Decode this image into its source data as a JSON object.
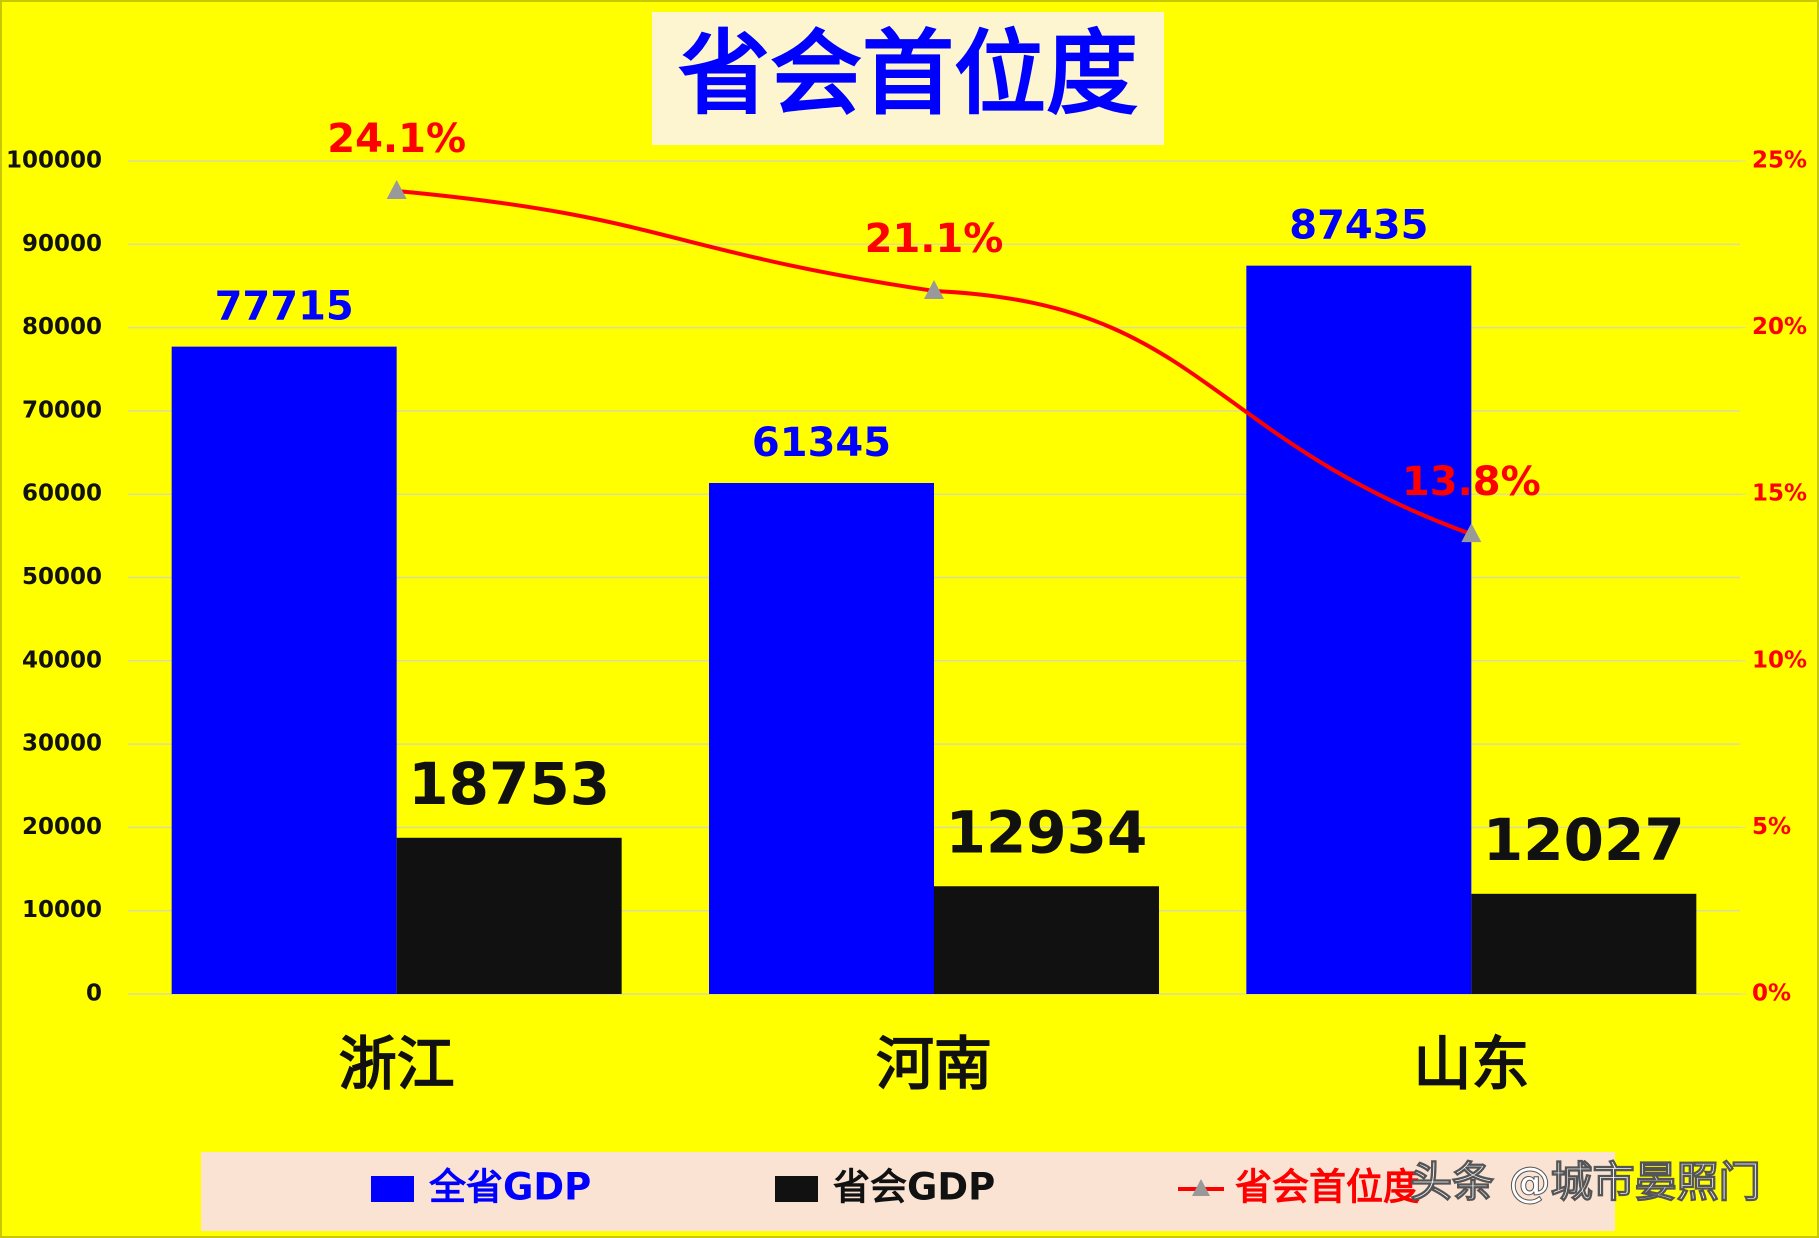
{
  "chart_data": {
    "type": "bar",
    "title": "省会首位度",
    "categories": [
      "浙江",
      "河南",
      "山东"
    ],
    "series": [
      {
        "name": "全省GDP",
        "color": "#0000ff",
        "values": [
          77715,
          61345,
          87435
        ]
      },
      {
        "name": "省会GDP",
        "color": "#111111",
        "values": [
          18753,
          12934,
          12027
        ]
      },
      {
        "name": "省会首位度",
        "color": "#ff0000",
        "type": "line",
        "axis": "y2",
        "marker_color": "#999999",
        "values": [
          24.1,
          21.1,
          13.8
        ],
        "value_labels": [
          "24.1%",
          "21.1%",
          "13.8%"
        ]
      }
    ],
    "ylim": [
      0,
      100000
    ],
    "yticks": [
      0,
      10000,
      20000,
      30000,
      40000,
      50000,
      60000,
      70000,
      80000,
      90000,
      100000
    ],
    "y2lim": [
      0,
      25
    ],
    "y2ticks": [
      {
        "value": 0,
        "label": "0%"
      },
      {
        "value": 5,
        "label": "5%"
      },
      {
        "value": 10,
        "label": "10%"
      },
      {
        "value": 15,
        "label": "15%"
      },
      {
        "value": 20,
        "label": "20%"
      },
      {
        "value": 25,
        "label": "25%"
      }
    ],
    "grid": true,
    "legend": "bottom",
    "watermark": "头条 @城市晏照门"
  }
}
